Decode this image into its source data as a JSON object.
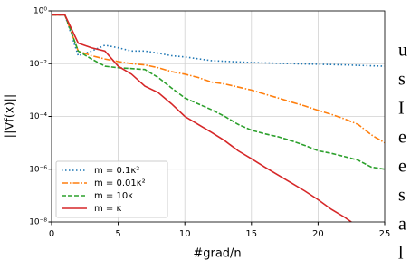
{
  "chart_data": {
    "type": "line",
    "x_label": "#grad/n",
    "y_label": "||∇f(x)||",
    "log_y": true,
    "grid": true,
    "legend": "lower left",
    "xlim": [
      0,
      25
    ],
    "xticks": [
      0,
      5,
      10,
      15,
      20,
      25
    ],
    "ylim": [
      1e-08,
      1
    ],
    "yticks": [
      {
        "value": 1e-08,
        "label": "10⁻⁸"
      },
      {
        "value": 1e-06,
        "label": "10⁻⁶"
      },
      {
        "value": 0.0001,
        "label": "10⁻⁴"
      },
      {
        "value": 0.01,
        "label": "10⁻²"
      },
      {
        "value": 1,
        "label": "10⁰"
      }
    ],
    "series": [
      {
        "name": "m = 0.1κ²",
        "color": "#1f77b4",
        "style": "dotted",
        "x": [
          0,
          1,
          2,
          3,
          4,
          5,
          6,
          7,
          8,
          9,
          10,
          12,
          15,
          18,
          20,
          22,
          25
        ],
        "values": [
          0.7,
          0.7,
          0.02,
          0.03,
          0.05,
          0.04,
          0.03,
          0.03,
          0.025,
          0.02,
          0.018,
          0.013,
          0.011,
          0.01,
          0.0095,
          0.009,
          0.008
        ]
      },
      {
        "name": "m = 0.01κ²",
        "color": "#ff7f0e",
        "style": "dashdot",
        "x": [
          0,
          1,
          2,
          3,
          4,
          5,
          6,
          7,
          8,
          9,
          10,
          11,
          12,
          13,
          14,
          15,
          16,
          17,
          18,
          19,
          20,
          21,
          22,
          23,
          24,
          25
        ],
        "values": [
          0.7,
          0.7,
          0.03,
          0.02,
          0.015,
          0.012,
          0.01,
          0.009,
          0.007,
          0.005,
          0.004,
          0.003,
          0.002,
          0.0017,
          0.0013,
          0.001,
          0.0007,
          0.0005,
          0.00035,
          0.00025,
          0.00017,
          0.00012,
          8e-05,
          5e-05,
          2e-05,
          1e-05
        ]
      },
      {
        "name": "m = 10κ",
        "color": "#2ca02c",
        "style": "dashed",
        "x": [
          0,
          1,
          2,
          3,
          4,
          5,
          6,
          7,
          8,
          9,
          10,
          11,
          12,
          13,
          14,
          15,
          16,
          17,
          18,
          19,
          20,
          21,
          22,
          23,
          24,
          25
        ],
        "values": [
          0.7,
          0.7,
          0.03,
          0.015,
          0.008,
          0.007,
          0.0065,
          0.006,
          0.003,
          0.0012,
          0.0005,
          0.0003,
          0.00018,
          0.0001,
          5e-05,
          3e-05,
          2.2e-05,
          1.7e-05,
          1.2e-05,
          8e-06,
          5e-06,
          4e-06,
          3e-06,
          2.2e-06,
          1.2e-06,
          1e-06
        ]
      },
      {
        "name": "m = κ",
        "color": "#d62728",
        "style": "solid",
        "x": [
          0,
          1,
          2,
          3,
          4,
          5,
          6,
          7,
          8,
          9,
          10,
          11,
          12,
          13,
          14,
          15,
          16,
          17,
          18,
          19,
          20,
          21,
          22,
          22.5
        ],
        "values": [
          0.7,
          0.7,
          0.06,
          0.04,
          0.03,
          0.008,
          0.004,
          0.0014,
          0.0008,
          0.0003,
          0.0001,
          5e-05,
          2.5e-05,
          1.2e-05,
          5e-06,
          2.5e-06,
          1.2e-06,
          6e-07,
          3e-07,
          1.5e-07,
          7e-08,
          3e-08,
          1.5e-08,
          1e-08
        ]
      }
    ]
  },
  "side_text": [
    "u",
    "s",
    "I",
    "e",
    "e",
    "s",
    "a",
    "l"
  ]
}
